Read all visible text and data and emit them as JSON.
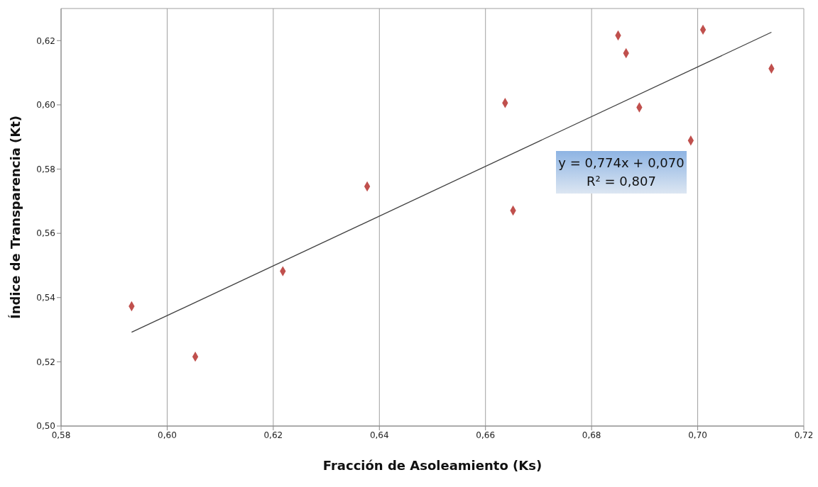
{
  "chart_data": {
    "type": "scatter",
    "xlabel": "Fracción de Asoleamiento (Ks)",
    "ylabel": "Índice de Transparencia (Kt)",
    "x": [
      0.5933,
      0.6053,
      0.6218,
      0.6377,
      0.6637,
      0.6652,
      0.685,
      0.6865,
      0.689,
      0.6987,
      0.701,
      0.7139
    ],
    "series": [
      {
        "color": "#c0504d",
        "marker": "diamond",
        "values": [
          0.5373,
          0.5216,
          0.5482,
          0.5746,
          0.6006,
          0.5671,
          0.6216,
          0.6161,
          0.5992,
          0.5889,
          0.6234,
          0.6113
        ]
      },
      {
        "type": "line",
        "color": "#404040",
        "x": [
          0.5933,
          0.7139
        ],
        "values": [
          0.5292,
          0.6226
        ],
        "marker": "none",
        "line_style": "solid"
      }
    ],
    "xlim": [
      0.58,
      0.72
    ],
    "xticks": [
      {
        "value": 0.58,
        "label": "0,58"
      },
      {
        "value": 0.6,
        "label": "0,60"
      },
      {
        "value": 0.62,
        "label": "0,62"
      },
      {
        "value": 0.64,
        "label": "0,64"
      },
      {
        "value": 0.66,
        "label": "0,66"
      },
      {
        "value": 0.68,
        "label": "0,68"
      },
      {
        "value": 0.7,
        "label": "0,70"
      },
      {
        "value": 0.72,
        "label": "0,72"
      }
    ],
    "ylim": [
      0.5,
      0.63
    ],
    "yticks": [
      {
        "value": 0.5,
        "label": "0,50"
      },
      {
        "value": 0.52,
        "label": "0,52"
      },
      {
        "value": 0.54,
        "label": "0,54"
      },
      {
        "value": 0.56,
        "label": "0,56"
      },
      {
        "value": 0.58,
        "label": "0,58"
      },
      {
        "value": 0.6,
        "label": "0,60"
      },
      {
        "value": 0.62,
        "label": "0,62"
      }
    ],
    "grid": true,
    "annotations": [
      "y = 0,774x + 0,070",
      "R² = 0,807"
    ]
  }
}
